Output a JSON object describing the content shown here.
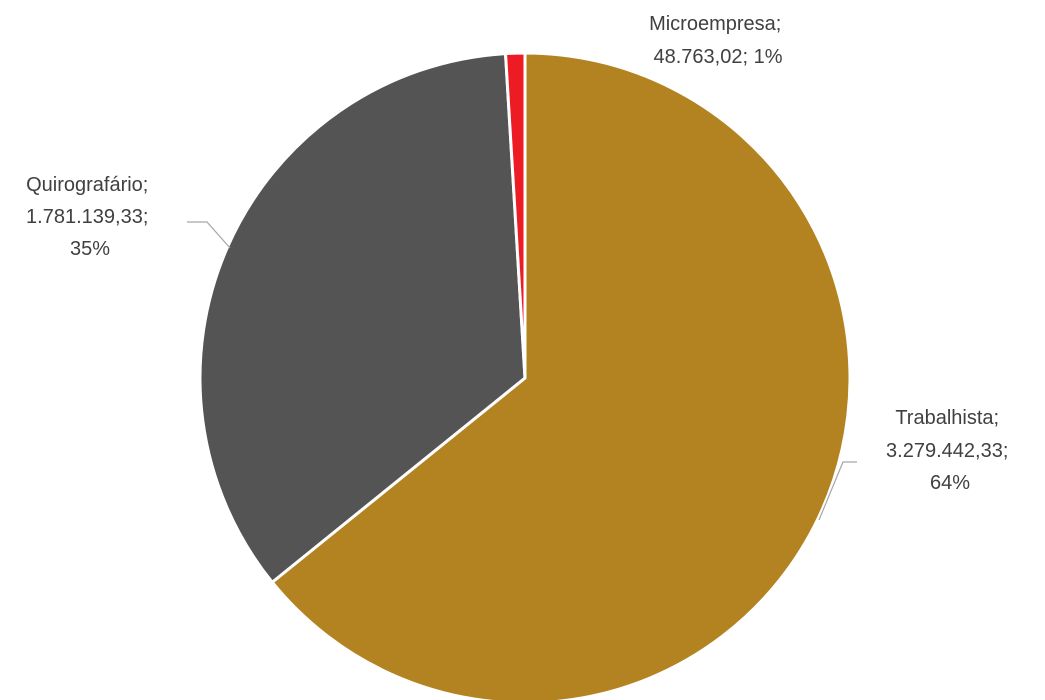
{
  "chart_data": {
    "type": "pie",
    "start": "12 o'clock",
    "direction": "clockwise",
    "legend": "none",
    "slices": [
      {
        "name": "Trabalhista",
        "value": 3279442.33,
        "value_text": "3.279.442,33",
        "percent_text": "64%",
        "color": "#b38321"
      },
      {
        "name": "Quirografário",
        "value": 1781139.33,
        "value_text": "1.781.139,33",
        "percent_text": "35%",
        "color": "#545454"
      },
      {
        "name": "Microempresa",
        "value": 48763.02,
        "value_text": "48.763,02",
        "percent_text": "1%",
        "color": "#ed1c24"
      }
    ]
  }
}
